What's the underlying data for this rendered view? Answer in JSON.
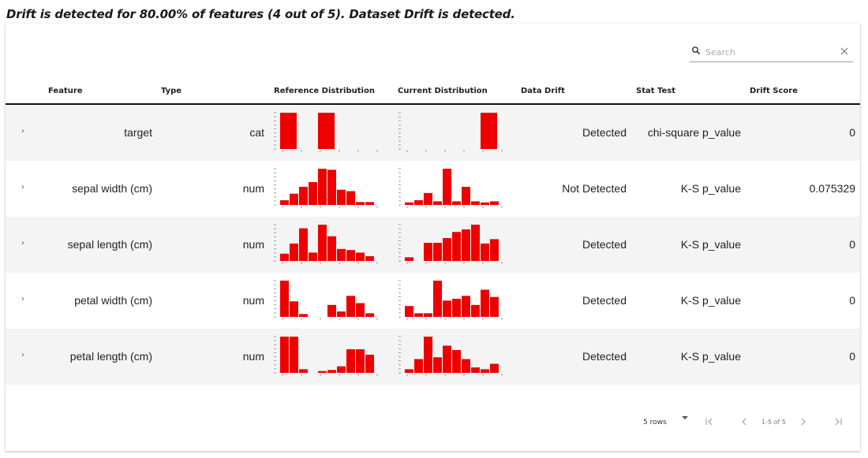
{
  "headline": "Drift is detected for 80.00% of features (4 out of 5). Dataset Drift is detected.",
  "search": {
    "placeholder": "Search",
    "value": ""
  },
  "columns": {
    "feature": "Feature",
    "type": "Type",
    "reference": "Reference Distribution",
    "current": "Current Distribution",
    "drift": "Data Drift",
    "stat": "Stat Test",
    "score": "Drift Score"
  },
  "colors": {
    "bar": "#ee0000",
    "row_alt": "#f4f4f4",
    "axis": "#888888"
  },
  "rows": [
    {
      "expand": "›",
      "feature": "target",
      "type": "cat",
      "drift": "Detected",
      "stat": "chi-square p_value",
      "score": "0",
      "ref_hist": [
        1,
        0,
        1,
        0,
        0
      ],
      "cur_hist": [
        0,
        0,
        0,
        0,
        1
      ]
    },
    {
      "expand": "›",
      "feature": "sepal width (cm)",
      "type": "num",
      "drift": "Not Detected",
      "stat": "K-S p_value",
      "score": "0.075329",
      "ref_hist": [
        0.13,
        0.31,
        0.5,
        0.63,
        1.0,
        0.97,
        0.42,
        0.38,
        0.08,
        0.08
      ],
      "cur_hist": [
        0.07,
        0.13,
        0.33,
        0.1,
        1.0,
        0.1,
        0.5,
        0.1,
        0.07,
        0.1
      ]
    },
    {
      "expand": "›",
      "feature": "sepal length (cm)",
      "type": "num",
      "drift": "Detected",
      "stat": "K-S p_value",
      "score": "0",
      "ref_hist": [
        0.2,
        0.48,
        0.9,
        0.23,
        1.0,
        0.68,
        0.33,
        0.3,
        0.23,
        0.13
      ],
      "cur_hist": [
        0.1,
        0,
        0.5,
        0.5,
        0.63,
        0.8,
        0.87,
        1.0,
        0.48,
        0.6
      ]
    },
    {
      "expand": "›",
      "feature": "petal width (cm)",
      "type": "num",
      "drift": "Detected",
      "stat": "K-S p_value",
      "score": "0",
      "ref_hist": [
        1.0,
        0.43,
        0.08,
        0,
        0,
        0.33,
        0.15,
        0.58,
        0.38,
        0.1
      ],
      "cur_hist": [
        0.3,
        0.1,
        0.1,
        1.0,
        0.45,
        0.5,
        0.58,
        0.33,
        0.75,
        0.55
      ]
    },
    {
      "expand": "›",
      "feature": "petal length (cm)",
      "type": "num",
      "drift": "Detected",
      "stat": "K-S p_value",
      "score": "0",
      "ref_hist": [
        1.0,
        1.0,
        0.1,
        0,
        0.05,
        0.08,
        0.18,
        0.65,
        0.65,
        0.5
      ],
      "cur_hist": [
        0.1,
        0.38,
        1.0,
        0.43,
        0.75,
        0.63,
        0.38,
        0.15,
        0.1,
        0.25
      ]
    }
  ],
  "footer": {
    "rows_label": "5 rows",
    "page_info": "1-5 of 5"
  }
}
